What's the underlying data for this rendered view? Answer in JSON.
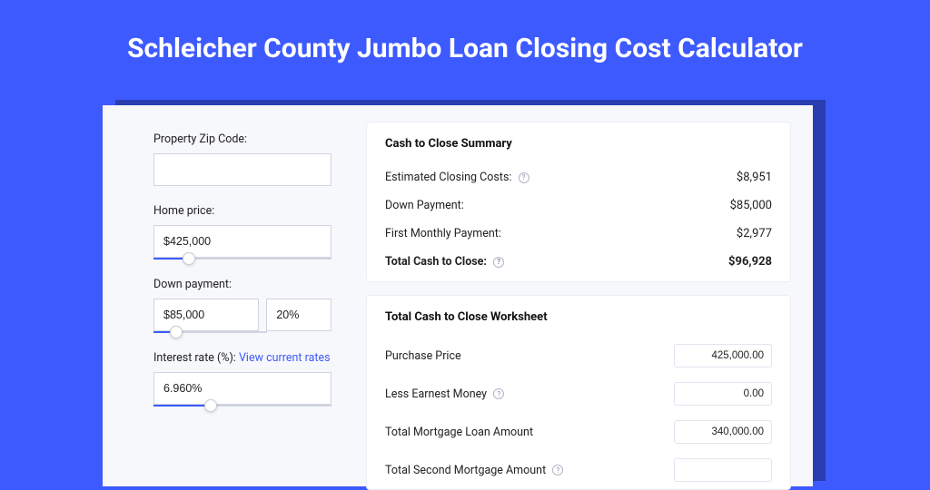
{
  "colors": {
    "page_bg": "#3d5afe",
    "shadow_bg": "#2a3eb1",
    "card_bg": "#f7f8fc",
    "panel_bg": "#ffffff",
    "panel_border": "#eceef5",
    "input_border": "#d0d4e0",
    "text": "#222222",
    "title_text": "#ffffff",
    "link": "#3d5afe",
    "slider_fill": "#3d5afe",
    "slider_track": "#d0d4e0",
    "help_border": "#b0b6c8"
  },
  "page": {
    "title": "Schleicher County Jumbo Loan Closing Cost Calculator"
  },
  "form": {
    "zip": {
      "label": "Property Zip Code:",
      "value": ""
    },
    "home_price": {
      "label": "Home price:",
      "value": "$425,000",
      "slider_pct": 20
    },
    "down_payment": {
      "label": "Down payment:",
      "amount": "$85,000",
      "percent": "20%",
      "slider_pct": 20
    },
    "interest": {
      "label": "Interest rate (%):",
      "link_text": "View current rates",
      "value": "6.960%",
      "slider_pct": 32
    }
  },
  "summary": {
    "title": "Cash to Close Summary",
    "rows": [
      {
        "label": "Estimated Closing Costs:",
        "help": true,
        "value": "$8,951"
      },
      {
        "label": "Down Payment:",
        "help": false,
        "value": "$85,000"
      },
      {
        "label": "First Monthly Payment:",
        "help": false,
        "value": "$2,977"
      }
    ],
    "total": {
      "label": "Total Cash to Close:",
      "help": true,
      "value": "$96,928"
    }
  },
  "worksheet": {
    "title": "Total Cash to Close Worksheet",
    "rows": [
      {
        "label": "Purchase Price",
        "help": false,
        "value": "425,000.00"
      },
      {
        "label": "Less Earnest Money",
        "help": true,
        "value": "0.00"
      },
      {
        "label": "Total Mortgage Loan Amount",
        "help": false,
        "value": "340,000.00"
      },
      {
        "label": "Total Second Mortgage Amount",
        "help": true,
        "value": ""
      }
    ]
  }
}
